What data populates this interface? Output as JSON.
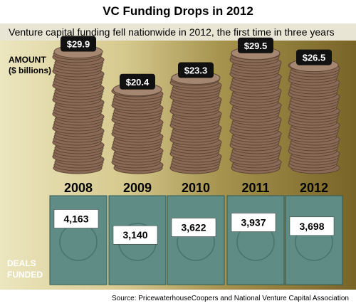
{
  "title": "VC Funding Drops in 2012",
  "subtitle": "Venture capital funding fell nationwide in 2012, the first time in three years",
  "amount_label_line1": "AMOUNT",
  "amount_label_line2": "($ billions)",
  "deals_label_line1": "DEALS",
  "deals_label_line2": "FUNDED",
  "source": "Source: PricewaterhouseCoopers and National Venture Capital Association",
  "colors": {
    "coin": "#8a6a55",
    "coin_edge": "#5e4636",
    "tile": "#5f8d86",
    "tile_dark": "#2f5a55",
    "label_bg": "#111111"
  },
  "chart_data": {
    "type": "bar",
    "categories": [
      "2008",
      "2009",
      "2010",
      "2011",
      "2012"
    ],
    "series": [
      {
        "name": "AMOUNT ($ billions)",
        "values": [
          29.9,
          20.4,
          23.3,
          29.5,
          26.5
        ],
        "labels": [
          "$29.9",
          "$20.4",
          "$23.3",
          "$29.5",
          "$26.5"
        ]
      },
      {
        "name": "DEALS FUNDED",
        "values": [
          4163,
          3140,
          3622,
          3937,
          3698
        ],
        "labels": [
          "4,163",
          "3,140",
          "3,622",
          "3,937",
          "3,698"
        ]
      }
    ]
  }
}
